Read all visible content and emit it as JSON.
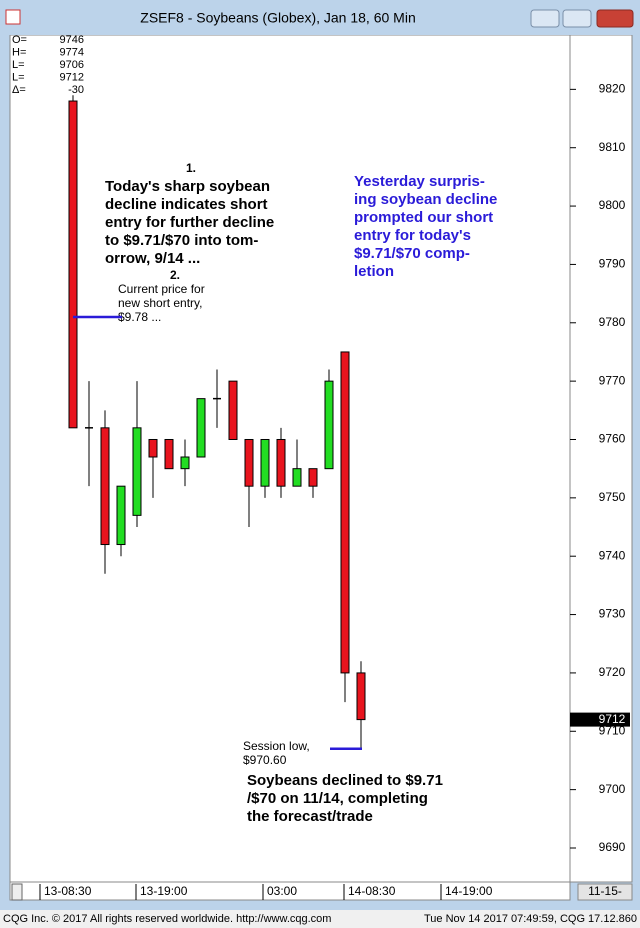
{
  "window": {
    "title": "ZSEF8 - Soybeans (Globex), Jan 18, 60 Min",
    "footer_left": "CQG Inc. © 2017 All rights reserved worldwide. http://www.cqg.com",
    "footer_right": "Tue Nov 14 2017 07:49:59, CQG 17.12.860",
    "scroll_label": "11-15-"
  },
  "chart_data": {
    "type": "candlestick",
    "categories": [
      null,
      null,
      null,
      null,
      null,
      null,
      null,
      null,
      null,
      null,
      null,
      null,
      null,
      null,
      null,
      null,
      null,
      null,
      null
    ],
    "open": [
      9818,
      9762,
      9762,
      9742,
      9747,
      9760,
      9760,
      9755,
      9757,
      9767,
      9770,
      9760,
      9752,
      9760,
      9752,
      9755,
      9755,
      9775,
      9720
    ],
    "high": [
      9819,
      9770,
      9765,
      9752,
      9770,
      9760,
      9760,
      9760,
      9767,
      9772,
      9770,
      9760,
      9760,
      9762,
      9760,
      9755,
      9772,
      9775,
      9722
    ],
    "low": [
      9762,
      9752,
      9737,
      9740,
      9745,
      9750,
      9755,
      9752,
      9757,
      9762,
      9760,
      9745,
      9750,
      9750,
      9752,
      9750,
      9755,
      9715,
      9707
    ],
    "close": [
      9762,
      9762,
      9742,
      9752,
      9762,
      9757,
      9755,
      9757,
      9767,
      9767,
      9760,
      9752,
      9760,
      9752,
      9755,
      9752,
      9770,
      9720,
      9712
    ],
    "up_color": "#22dd22",
    "down_color": "#e8141e",
    "ylim": [
      9684,
      9830
    ],
    "yticks": [
      9690,
      9700,
      9710,
      9720,
      9730,
      9740,
      9750,
      9760,
      9770,
      9780,
      9790,
      9800,
      9810,
      9820,
      9830
    ],
    "time_labels": [
      "13-08:30",
      "13-19:00",
      "03:00",
      "14-08:30",
      "14-19:00"
    ],
    "last_price": 9712,
    "summary": [
      {
        "label": "O=",
        "value": 9746
      },
      {
        "label": "H=",
        "value": 9774
      },
      {
        "label": "L=",
        "value": 9706
      },
      {
        "label": "L=",
        "value": 9712
      },
      {
        "label": "Δ=",
        "value": -30
      }
    ],
    "annotations": [
      {
        "number": "1.",
        "lines": [
          "Today's sharp soybean",
          "decline indicates short",
          "entry for further decline",
          "to $9.71/$70 into tom-",
          "orrow, 9/14 ..."
        ]
      },
      {
        "number": "2.",
        "lines": [
          "Current price for",
          "new short entry,",
          "$9.78 ..."
        ],
        "level": 9781
      },
      {
        "lines": [
          "Yesterday surpris-",
          "ing soybean decline",
          "prompted our short",
          "entry for today's",
          "$9.71/$70 comp-",
          "letion"
        ]
      },
      {
        "lines": [
          "Session low,",
          "$970.60"
        ],
        "level": 9707
      },
      {
        "lines": [
          "Soybeans declined to $9.71",
          "/$70 on 11/14, completing",
          "the forecast/trade"
        ]
      }
    ]
  }
}
